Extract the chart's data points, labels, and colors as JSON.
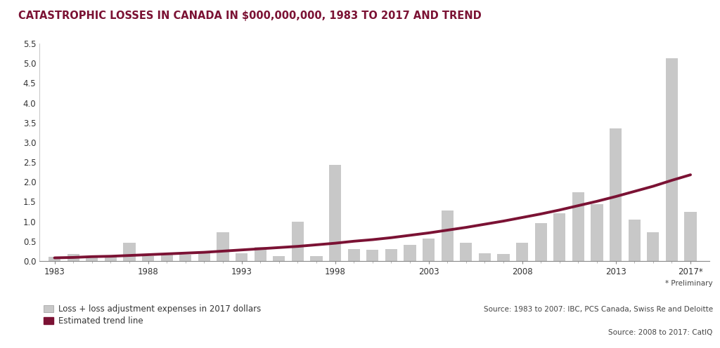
{
  "title": "CATASTROPHIC LOSSES IN CANADA IN $000,000,000, 1983 TO 2017 AND TREND",
  "years": [
    1983,
    1984,
    1985,
    1986,
    1987,
    1988,
    1989,
    1990,
    1991,
    1992,
    1993,
    1994,
    1995,
    1996,
    1997,
    1998,
    1999,
    2000,
    2001,
    2002,
    2003,
    2004,
    2005,
    2006,
    2007,
    2008,
    2009,
    2010,
    2011,
    2012,
    2013,
    2014,
    2015,
    2016,
    2017
  ],
  "bar_values": [
    0.1,
    0.18,
    0.08,
    0.1,
    0.46,
    0.12,
    0.2,
    0.16,
    0.22,
    0.72,
    0.19,
    0.35,
    0.13,
    1.0,
    0.12,
    2.43,
    0.3,
    0.28,
    0.3,
    0.4,
    0.57,
    1.27,
    0.47,
    0.2,
    0.18,
    0.46,
    0.96,
    1.2,
    1.73,
    1.43,
    3.35,
    1.05,
    0.72,
    5.13,
    1.25
  ],
  "trend_values": [
    0.08,
    0.09,
    0.11,
    0.12,
    0.14,
    0.16,
    0.18,
    0.2,
    0.22,
    0.25,
    0.28,
    0.31,
    0.34,
    0.37,
    0.41,
    0.45,
    0.5,
    0.54,
    0.59,
    0.65,
    0.71,
    0.78,
    0.85,
    0.93,
    1.01,
    1.1,
    1.19,
    1.29,
    1.4,
    1.51,
    1.63,
    1.76,
    1.89,
    2.04,
    2.18
  ],
  "bar_color": "#c8c8c8",
  "trend_color": "#7b1234",
  "background_color": "#ffffff",
  "title_color": "#7b1234",
  "ylim": [
    0.0,
    5.5
  ],
  "yticks": [
    0.0,
    0.5,
    1.0,
    1.5,
    2.0,
    2.5,
    3.0,
    3.5,
    4.0,
    4.5,
    5.0,
    5.5
  ],
  "xtick_labels": [
    "1983",
    "1988",
    "1993",
    "1998",
    "2003",
    "2008",
    "2013",
    "2017*"
  ],
  "xtick_positions": [
    1983,
    1988,
    1993,
    1998,
    2003,
    2008,
    2013,
    2017
  ],
  "legend_bar_label": "Loss + loss adjustment expenses in 2017 dollars",
  "legend_trend_label": "Estimated trend line",
  "note_text": "* Preliminary",
  "source_text1": "Source: 1983 to 2007: IBC, PCS Canada, Swiss Re and Deloitte",
  "source_text2": "Source: 2008 to 2017: CatIQ",
  "title_fontsize": 10.5,
  "axis_fontsize": 8.5,
  "legend_fontsize": 8.5,
  "source_fontsize": 7.5
}
